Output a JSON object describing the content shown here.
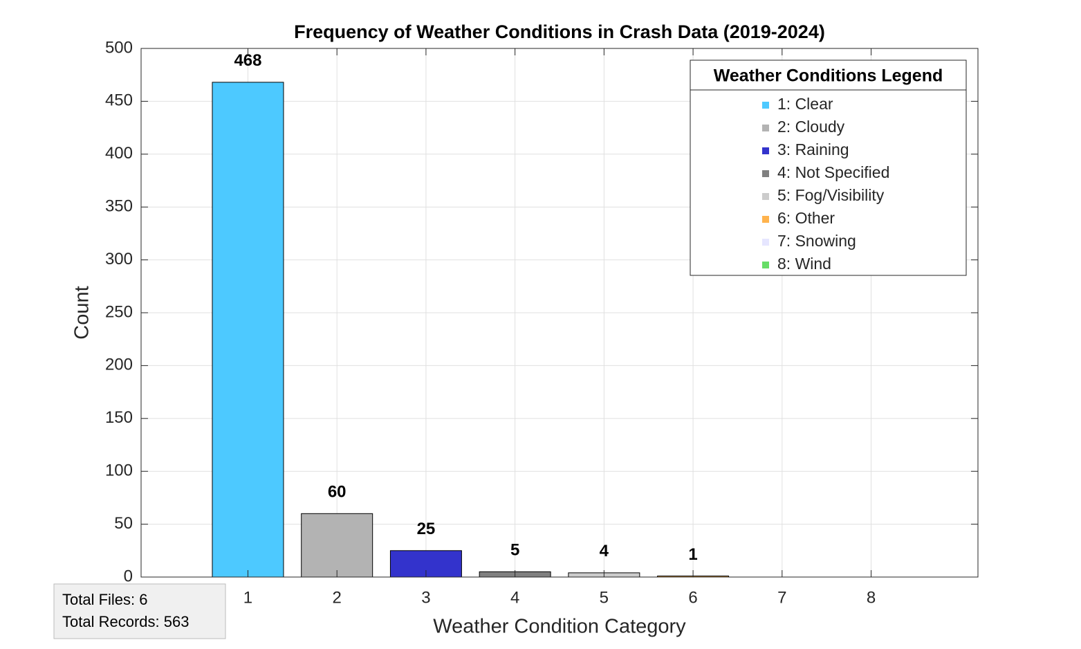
{
  "chart_data": {
    "type": "bar",
    "title": "Frequency of Weather Conditions in Crash Data (2019-2024)",
    "xlabel": "Weather Condition Category",
    "ylabel": "Count",
    "x": [
      1,
      2,
      3,
      4,
      5,
      6,
      7,
      8
    ],
    "values": [
      468,
      60,
      25,
      5,
      4,
      1,
      0,
      0
    ],
    "colors": [
      "#4dc9ff",
      "#b3b3b3",
      "#3333cc",
      "#808080",
      "#cccccc",
      "#ffb34d",
      "#e6e6ff",
      "#66dd66"
    ],
    "xlim": [
      -0.2,
      9.2
    ],
    "xticks": [
      1,
      2,
      3,
      4,
      5,
      6,
      7,
      8
    ],
    "ylim": [
      0,
      500
    ],
    "yticks": [
      0,
      50,
      100,
      150,
      200,
      250,
      300,
      350,
      400,
      450,
      500
    ],
    "grid": true,
    "legend": {
      "title": "Weather Conditions Legend",
      "position": "northeast",
      "entries": [
        "1: Clear",
        "2: Cloudy",
        "3: Raining",
        "4: Not Specified",
        "5: Fog/Visibility",
        "6: Other",
        "7: Snowing",
        "8: Wind"
      ]
    },
    "annotation": [
      "Total Files: 6",
      "Total Records: 563"
    ]
  }
}
